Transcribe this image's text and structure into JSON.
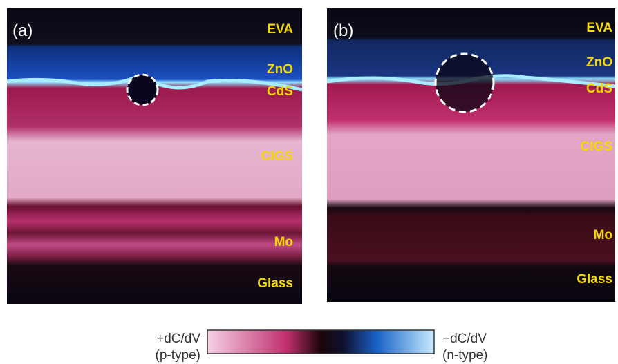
{
  "panels": [
    {
      "label": "(a)",
      "layers": [
        "EVA",
        "ZnO",
        "CdS",
        "CIGS",
        "Mo",
        "Glass"
      ]
    },
    {
      "label": "(b)",
      "layers": [
        "EVA",
        "ZnO",
        "CdS",
        "CIGS",
        "Mo",
        "Glass"
      ]
    }
  ],
  "colorbar": {
    "left_label": "+dC/dV",
    "left_sublabel": "(p-type)",
    "right_label": "−dC/dV",
    "right_sublabel": "(n-type)"
  }
}
